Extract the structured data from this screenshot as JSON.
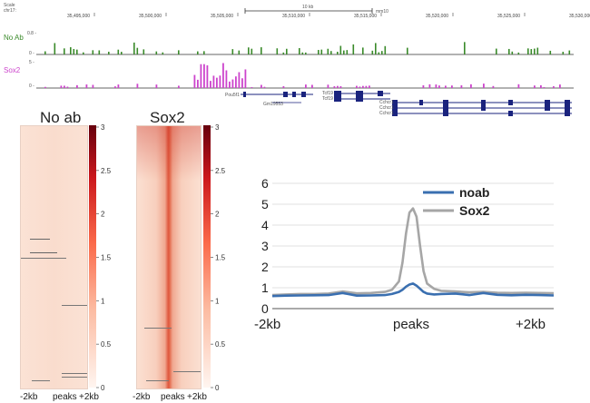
{
  "browser": {
    "scale_label": "Scale",
    "chrom_label": "chr17:",
    "scalebar_text": "10 kb",
    "assembly": "mm10",
    "coords": [
      "35,495,000",
      "35,500,000",
      "35,505,000",
      "35,510,000",
      "35,515,000",
      "35,520,000",
      "35,525,000",
      "35,530,000"
    ],
    "tracks": [
      {
        "name": "No Ab",
        "scale_top": "0.8 -",
        "scale_bottom": "0 -",
        "color": "#3a8a2a"
      },
      {
        "name": "Sox2",
        "scale_top": "5 -",
        "scale_bottom": "0 -",
        "color": "#cc44cc"
      }
    ],
    "genes": [
      "Pou5f1",
      "Gm19553",
      "Tcf19",
      "Tcf19",
      "Cchcr1",
      "Cchcr1",
      "Cchcr1"
    ],
    "colors": {
      "gene": "#1a237e",
      "axis": "#333333"
    }
  },
  "heatmaps": [
    {
      "title": "No ab",
      "colorbar_ticks": [
        "3",
        "2.5",
        "2",
        "1.5",
        "1",
        "0.5",
        "0"
      ],
      "x_labels": [
        "-2kb",
        "peaks",
        "+2kb"
      ]
    },
    {
      "title": "Sox2",
      "colorbar_ticks": [
        "3",
        "2.5",
        "2",
        "1.5",
        "1",
        "0.5",
        "0"
      ],
      "x_labels": [
        "-2kb",
        "peaks",
        "+2kb"
      ]
    }
  ],
  "chart_data": {
    "type": "line",
    "x_labels": [
      "-2kb",
      "peaks",
      "+2kb"
    ],
    "ylim": [
      0,
      6
    ],
    "yticks": [
      "0",
      "1",
      "2",
      "3",
      "4",
      "5",
      "6"
    ],
    "grid": true,
    "legend_position": "top-right",
    "x": [
      -2,
      -1.8,
      -1.6,
      -1.4,
      -1.2,
      -1.0,
      -0.8,
      -0.6,
      -0.4,
      -0.3,
      -0.2,
      -0.15,
      -0.1,
      -0.05,
      0,
      0.05,
      0.1,
      0.15,
      0.2,
      0.3,
      0.4,
      0.6,
      0.8,
      1.0,
      1.2,
      1.4,
      1.6,
      1.8,
      2.0
    ],
    "series": [
      {
        "name": "noab",
        "color": "#3a6fb0",
        "values": [
          0.6,
          0.62,
          0.63,
          0.64,
          0.65,
          0.75,
          0.62,
          0.63,
          0.65,
          0.7,
          0.8,
          0.9,
          1.05,
          1.15,
          1.2,
          1.1,
          0.95,
          0.8,
          0.72,
          0.68,
          0.7,
          0.72,
          0.65,
          0.75,
          0.66,
          0.64,
          0.66,
          0.65,
          0.63
        ]
      },
      {
        "name": "Sox2",
        "color": "#a6a6a6",
        "values": [
          0.65,
          0.68,
          0.7,
          0.7,
          0.72,
          0.82,
          0.73,
          0.75,
          0.8,
          0.9,
          1.3,
          2.2,
          3.6,
          4.6,
          4.8,
          4.4,
          3.0,
          1.8,
          1.2,
          0.95,
          0.85,
          0.82,
          0.78,
          0.8,
          0.76,
          0.75,
          0.76,
          0.75,
          0.74
        ]
      }
    ]
  }
}
